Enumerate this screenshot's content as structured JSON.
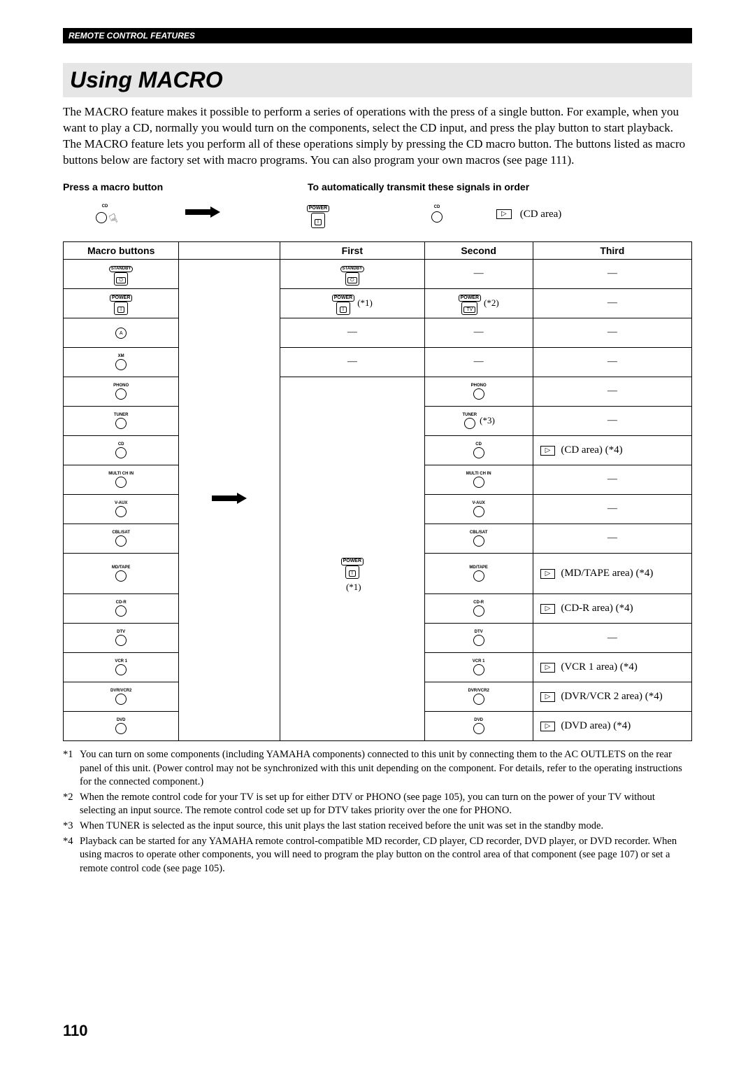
{
  "header": {
    "title": "REMOTE CONTROL FEATURES"
  },
  "section_title": "Using MACRO",
  "intro": "The MACRO feature makes it possible to perform a series of operations with the press of a single button. For example, when you want to play a CD, normally you would turn on the components, select the CD input, and press the play button to start playback. The MACRO feature lets you perform all of these operations simply by pressing the CD macro button. The buttons listed as macro buttons below are factory set with macro programs. You can also program your own macros (see page 111).",
  "press_left": "Press a macro button",
  "press_right": "To automatically transmit these signals in order",
  "signal": {
    "cd_label": "CD",
    "power_label": "POWER",
    "cd2_label": "CD",
    "play_note": "(CD area)"
  },
  "table": {
    "headers": {
      "c1": "Macro buttons",
      "c2": "",
      "c3": "First",
      "c4": "Second",
      "c5": "Third"
    },
    "rows": [
      {
        "macro": {
          "type": "rect",
          "top": "STANDBY",
          "inner": "⏻"
        },
        "first": {
          "type": "rect",
          "top": "STANDBY",
          "inner": "⏻"
        },
        "second": {
          "type": "dash"
        },
        "third": {
          "type": "dash"
        }
      },
      {
        "macro": {
          "type": "rect",
          "top": "POWER",
          "inner": "I"
        },
        "first": {
          "type": "rect",
          "top": "POWER",
          "inner": "I",
          "ann": "(*1)"
        },
        "second": {
          "type": "rect",
          "top": "POWER",
          "inner": "TV",
          "ann": "(*2)"
        },
        "third": {
          "type": "dash"
        }
      },
      {
        "macro": {
          "type": "circ",
          "label": "",
          "inner": "A"
        },
        "first": {
          "type": "dash"
        },
        "second": {
          "type": "dash"
        },
        "third": {
          "type": "dash"
        }
      },
      {
        "macro": {
          "type": "circ",
          "label": "XM"
        },
        "first": {
          "type": "dash"
        },
        "second": {
          "type": "dash"
        },
        "third": {
          "type": "dash"
        }
      },
      {
        "macro": {
          "type": "circ",
          "label": "PHONO"
        },
        "first": {
          "type": "merge_start"
        },
        "second": {
          "type": "circ",
          "label": "PHONO"
        },
        "third": {
          "type": "dash"
        }
      },
      {
        "macro": {
          "type": "circ",
          "label": "TUNER"
        },
        "first": {
          "type": "merge"
        },
        "second": {
          "type": "circ",
          "label": "TUNER",
          "ann": "(*3)"
        },
        "third": {
          "type": "dash"
        }
      },
      {
        "macro": {
          "type": "circ",
          "label": "CD"
        },
        "first": {
          "type": "merge"
        },
        "second": {
          "type": "circ",
          "label": "CD"
        },
        "third": {
          "type": "play",
          "text": "(CD area) (*4)"
        }
      },
      {
        "macro": {
          "type": "circ",
          "label": "MULTI CH IN"
        },
        "first": {
          "type": "merge"
        },
        "second": {
          "type": "circ",
          "label": "MULTI CH IN"
        },
        "third": {
          "type": "dash"
        }
      },
      {
        "macro": {
          "type": "circ",
          "label": "V-AUX"
        },
        "first": {
          "type": "merge"
        },
        "second": {
          "type": "circ",
          "label": "V-AUX"
        },
        "third": {
          "type": "dash"
        }
      },
      {
        "macro": {
          "type": "circ",
          "label": "CBL/SAT"
        },
        "first": {
          "type": "merge"
        },
        "second": {
          "type": "circ",
          "label": "CBL/SAT"
        },
        "third": {
          "type": "dash"
        }
      },
      {
        "macro": {
          "type": "circ",
          "label": "MD/TAPE"
        },
        "first": {
          "type": "merge_power"
        },
        "second": {
          "type": "circ",
          "label": "MD/TAPE"
        },
        "third": {
          "type": "play",
          "text": "(MD/TAPE area) (*4)"
        }
      },
      {
        "macro": {
          "type": "circ",
          "label": "CD-R"
        },
        "first": {
          "type": "merge"
        },
        "second": {
          "type": "circ",
          "label": "CD-R"
        },
        "third": {
          "type": "play",
          "text": "(CD-R area) (*4)"
        }
      },
      {
        "macro": {
          "type": "circ",
          "label": "DTV"
        },
        "first": {
          "type": "merge"
        },
        "second": {
          "type": "circ",
          "label": "DTV"
        },
        "third": {
          "type": "dash"
        }
      },
      {
        "macro": {
          "type": "circ",
          "label": "VCR 1"
        },
        "first": {
          "type": "merge"
        },
        "second": {
          "type": "circ",
          "label": "VCR 1"
        },
        "third": {
          "type": "play",
          "text": "(VCR 1 area) (*4)"
        }
      },
      {
        "macro": {
          "type": "circ",
          "label": "DVR/VCR2"
        },
        "first": {
          "type": "merge"
        },
        "second": {
          "type": "circ",
          "label": "DVR/VCR2"
        },
        "third": {
          "type": "play",
          "text": "(DVR/VCR 2 area) (*4)"
        }
      },
      {
        "macro": {
          "type": "circ",
          "label": "DVD"
        },
        "first": {
          "type": "merge_end"
        },
        "second": {
          "type": "circ",
          "label": "DVD"
        },
        "third": {
          "type": "play",
          "text": "(DVD area) (*4)"
        }
      }
    ],
    "merge_power": {
      "top": "POWER",
      "inner": "I",
      "below": "(*1)"
    }
  },
  "footnotes": [
    {
      "m": "*1",
      "t": "You can turn on some components (including YAMAHA components) connected to this unit by connecting them to the AC OUTLETS on the rear panel of this unit. (Power control may not be synchronized with this unit depending on the component. For details, refer to the operating instructions for the connected component.)"
    },
    {
      "m": "*2",
      "t": "When the remote control code for your TV is set up for either DTV or PHONO (see page 105), you can turn on the power of your TV without selecting an input source. The remote control code set up for DTV takes priority over the one for PHONO."
    },
    {
      "m": "*3",
      "t": "When TUNER is selected as the input source, this unit plays the last station received before the unit was set in the standby mode."
    },
    {
      "m": "*4",
      "t": "Playback can be started for any YAMAHA remote control-compatible MD recorder, CD player, CD recorder, DVD player, or DVD recorder. When using macros to operate other components, you will need to program the play button on the control area of that component (see page 107) or set a remote control code (see page 105)."
    }
  ],
  "page_number": "110"
}
